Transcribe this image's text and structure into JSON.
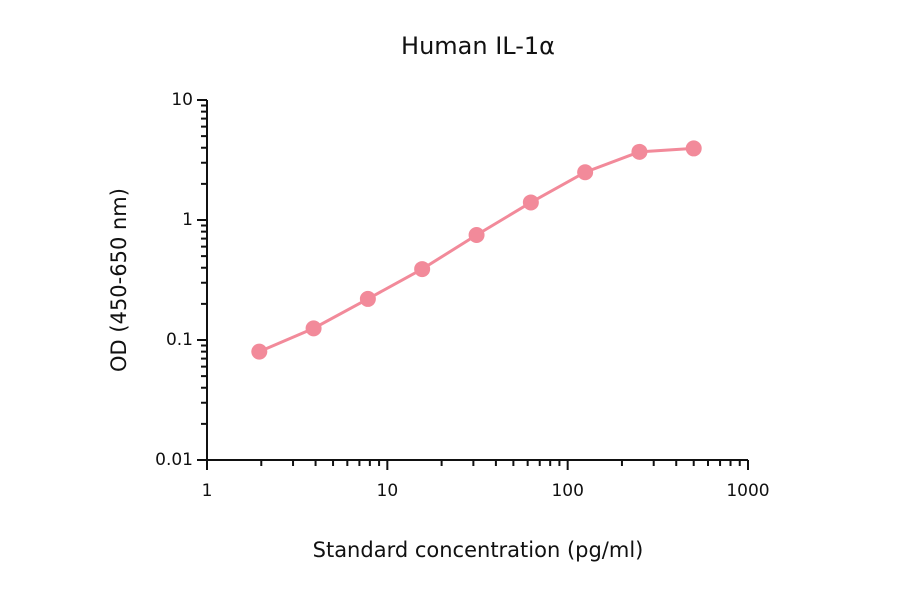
{
  "chart_data": {
    "type": "line",
    "title": "Human IL-1α",
    "xlabel": "Standard concentration (pg/ml)",
    "ylabel": "OD (450-650 nm)",
    "x": [
      1.95,
      3.9,
      7.8,
      15.6,
      31.25,
      62.5,
      125,
      250,
      500
    ],
    "series": [
      {
        "name": "Human IL-1α",
        "color": "#f28a9a",
        "values": [
          0.08,
          0.125,
          0.22,
          0.39,
          0.75,
          1.4,
          2.5,
          3.7,
          3.95
        ]
      }
    ],
    "xlim": [
      1,
      1000
    ],
    "ylim": [
      0.01,
      10
    ],
    "xticks": [
      1,
      10,
      100,
      1000
    ],
    "yticks": [
      0.01,
      0.1,
      1,
      10
    ],
    "xscale": "log",
    "yscale": "log",
    "grid": false
  }
}
